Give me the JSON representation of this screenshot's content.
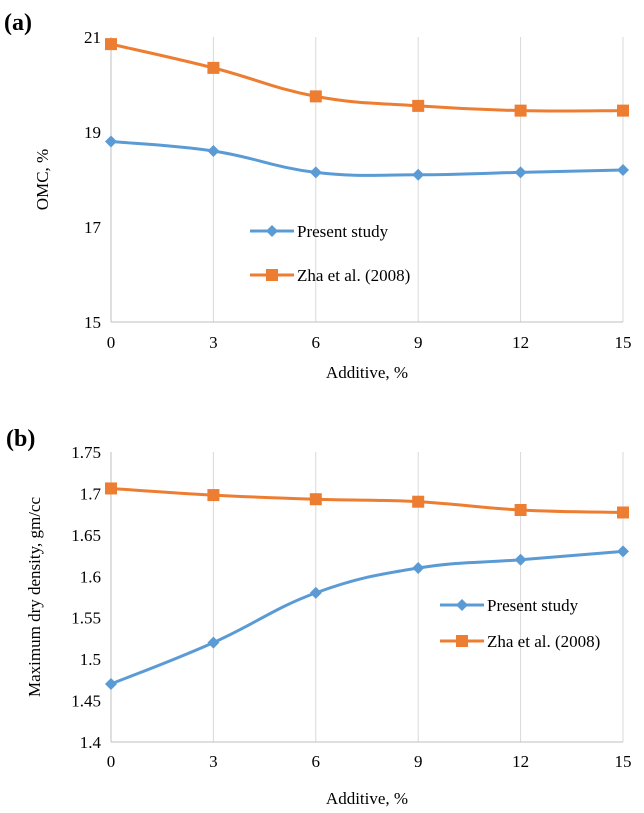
{
  "chart_data": [
    {
      "type": "line",
      "panel_label": "(a)",
      "x": [
        0,
        3,
        6,
        9,
        12,
        15
      ],
      "x_ticks": [
        "0",
        "3",
        "6",
        "9",
        "12",
        "15"
      ],
      "y_ticks": [
        "15",
        "17",
        "19",
        "21"
      ],
      "xlim": [
        0,
        15
      ],
      "ylim": [
        15,
        21
      ],
      "xlabel": "Additive, %",
      "ylabel": "OMC, %",
      "grid": "vertical",
      "legend_position": "center",
      "series": [
        {
          "name": "Present study",
          "marker": "diamond",
          "color": "#5B9BD5",
          "values": [
            18.8,
            18.6,
            18.15,
            18.1,
            18.15,
            18.2
          ]
        },
        {
          "name": "Zha et al. (2008)",
          "marker": "square",
          "color": "#ED7D31",
          "values": [
            20.85,
            20.35,
            19.75,
            19.55,
            19.45,
            19.45
          ]
        }
      ]
    },
    {
      "type": "line",
      "panel_label": "(b)",
      "x": [
        0,
        3,
        6,
        9,
        12,
        15
      ],
      "x_ticks": [
        "0",
        "3",
        "6",
        "9",
        "12",
        "15"
      ],
      "y_ticks": [
        "1.4",
        "1.45",
        "1.5",
        "1.55",
        "1.6",
        "1.65",
        "1.7",
        "1.75"
      ],
      "xlim": [
        0,
        15
      ],
      "ylim": [
        1.4,
        1.75
      ],
      "xlabel": "Additive, %",
      "ylabel": "Maximum dry density, gm/cc",
      "grid": "vertical",
      "legend_position": "right",
      "series": [
        {
          "name": "Present study",
          "marker": "diamond",
          "color": "#5B9BD5",
          "values": [
            1.47,
            1.52,
            1.58,
            1.61,
            1.62,
            1.63
          ]
        },
        {
          "name": "Zha et al. (2008)",
          "marker": "square",
          "color": "#ED7D31",
          "values": [
            1.706,
            1.698,
            1.693,
            1.69,
            1.68,
            1.677
          ]
        }
      ]
    }
  ]
}
